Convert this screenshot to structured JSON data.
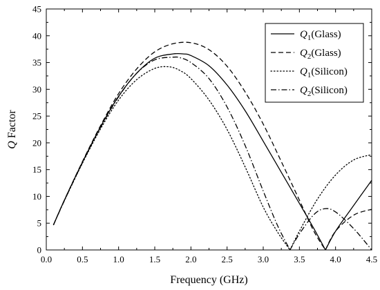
{
  "chart_data": {
    "type": "line",
    "title": "",
    "xlabel": "Frequency (GHz)",
    "ylabel": {
      "sym": "Q",
      "rest": " Factor"
    },
    "xlim": [
      0.0,
      4.5
    ],
    "ylim": [
      0,
      45
    ],
    "xticks": [
      0.0,
      0.5,
      1.0,
      1.5,
      2.0,
      2.5,
      3.0,
      3.5,
      4.0,
      4.5
    ],
    "xtick_labels": [
      "0.0",
      "0.5",
      "1.0",
      "1.5",
      "2.0",
      "2.5",
      "3.0",
      "3.5",
      "4.0",
      "4.5"
    ],
    "yticks": [
      0,
      5,
      10,
      15,
      20,
      25,
      30,
      35,
      40,
      45
    ],
    "ytick_labels": [
      "0",
      "5",
      "10",
      "15",
      "20",
      "25",
      "30",
      "35",
      "40",
      "45"
    ],
    "grid": false,
    "legend_position": "top-right",
    "series": [
      {
        "name": "Q1(Glass)",
        "legend": {
          "sym": "Q",
          "sub": "1",
          "rest": "(Glass)"
        },
        "style": "solid",
        "x": [
          0.1,
          0.25,
          0.5,
          0.75,
          1.0,
          1.25,
          1.5,
          1.75,
          1.9,
          2.0,
          2.25,
          2.5,
          2.75,
          3.0,
          3.25,
          3.5,
          3.7,
          3.86,
          4.0,
          4.25,
          4.5
        ],
        "y": [
          4.7,
          9.3,
          16.4,
          23.0,
          28.7,
          33.0,
          35.8,
          36.6,
          36.6,
          36.3,
          34.4,
          30.8,
          26.0,
          20.3,
          14.5,
          8.7,
          4.0,
          0.0,
          3.5,
          8.3,
          13.0
        ]
      },
      {
        "name": "Q2(Glass)",
        "legend": {
          "sym": "Q",
          "sub": "2",
          "rest": "(Glass)"
        },
        "style": "dashed",
        "x": [
          0.1,
          0.25,
          0.5,
          0.75,
          1.0,
          1.25,
          1.5,
          1.75,
          2.0,
          2.25,
          2.5,
          2.75,
          3.0,
          3.25,
          3.5,
          3.7,
          3.86,
          4.0,
          4.25,
          4.5
        ],
        "y": [
          4.7,
          9.3,
          16.5,
          23.2,
          29.2,
          33.8,
          37.0,
          38.5,
          38.7,
          37.4,
          34.3,
          29.5,
          23.5,
          16.5,
          9.3,
          3.5,
          0.0,
          3.5,
          6.5,
          7.6
        ]
      },
      {
        "name": "Q1(Silicon)",
        "legend": {
          "sym": "Q",
          "sub": "1",
          "rest": "(Silicon)"
        },
        "style": "dotted",
        "x": [
          0.1,
          0.25,
          0.5,
          0.75,
          1.0,
          1.25,
          1.5,
          1.7,
          1.85,
          2.0,
          2.25,
          2.5,
          2.75,
          3.0,
          3.2,
          3.37,
          3.5,
          3.75,
          4.0,
          4.25,
          4.5
        ],
        "y": [
          4.7,
          9.2,
          16.2,
          22.6,
          28.0,
          31.8,
          33.9,
          34.2,
          33.5,
          32.0,
          28.0,
          22.5,
          15.5,
          8.0,
          3.3,
          0.0,
          3.5,
          9.5,
          14.0,
          16.8,
          17.8
        ]
      },
      {
        "name": "Q2(Silicon)",
        "legend": {
          "sym": "Q",
          "sub": "2",
          "rest": "(Silicon)"
        },
        "style": "dashdot",
        "x": [
          0.1,
          0.25,
          0.5,
          0.75,
          1.0,
          1.25,
          1.5,
          1.75,
          1.85,
          2.0,
          2.25,
          2.5,
          2.75,
          3.0,
          3.2,
          3.37,
          3.5,
          3.7,
          3.85,
          4.0,
          4.25,
          4.5
        ],
        "y": [
          4.7,
          9.2,
          16.3,
          22.9,
          28.6,
          33.0,
          35.5,
          36.0,
          35.9,
          35.0,
          32.0,
          26.7,
          19.5,
          11.0,
          4.5,
          0.0,
          3.0,
          6.6,
          7.7,
          7.1,
          4.0,
          0.0
        ]
      }
    ]
  }
}
